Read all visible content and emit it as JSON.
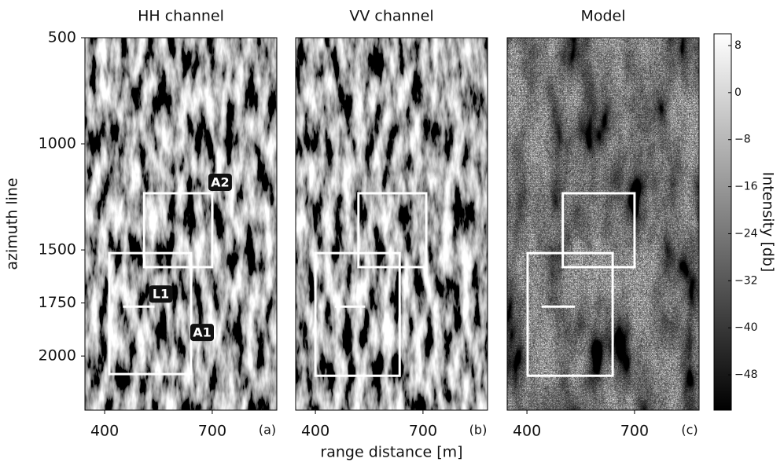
{
  "chart_data": [
    {
      "type": "image",
      "title": "HH channel",
      "panel_label": "(a)",
      "y_label": "azimuth line",
      "xlim": [
        345,
        880
      ],
      "xticks": [
        400,
        700
      ],
      "ylim": [
        500,
        2255
      ],
      "yticks": [
        500,
        1000,
        1500,
        1750,
        2000
      ],
      "y_inverted": true,
      "boxes": [
        {
          "name": "A1",
          "x": [
            413,
            641
          ],
          "y": [
            1515,
            2085
          ]
        },
        {
          "name": "A2",
          "x": [
            510,
            700
          ],
          "y": [
            1233,
            1581
          ]
        }
      ],
      "lines": [
        {
          "name": "L1",
          "x": [
            451,
            539
          ],
          "y": 1767
        }
      ]
    },
    {
      "type": "image",
      "title": "VV channel",
      "panel_label": "(b)",
      "x_label": "range distance [m]",
      "xlim": [
        345,
        880
      ],
      "xticks": [
        400,
        700
      ],
      "ylim": [
        500,
        2255
      ],
      "y_inverted": true,
      "boxes": [
        {
          "x": [
            400,
            635
          ],
          "y": [
            1515,
            2093
          ]
        },
        {
          "x": [
            520,
            709
          ],
          "y": [
            1233,
            1581
          ]
        }
      ],
      "lines": [
        {
          "x": [
            454,
            539
          ],
          "y": 1767
        }
      ]
    },
    {
      "type": "image",
      "title": "Model",
      "panel_label": "(c)",
      "xlim": [
        345,
        880
      ],
      "xticks": [
        400,
        700
      ],
      "ylim": [
        500,
        2255
      ],
      "y_inverted": true,
      "boxes": [
        {
          "x": [
            402,
            639
          ],
          "y": [
            1515,
            2093
          ]
        },
        {
          "x": [
            500,
            700
          ],
          "y": [
            1233,
            1581
          ]
        }
      ],
      "lines": [
        {
          "x": [
            441,
            534
          ],
          "y": 1767
        }
      ]
    },
    {
      "type": "colorbar",
      "y_label": "Intensity [db]",
      "ylim": [
        -54,
        10
      ],
      "yticks": [
        8,
        0,
        {
          "value": -8,
          "label": "−8"
        },
        {
          "value": -16,
          "label": "−16"
        },
        {
          "value": -24,
          "label": "−24"
        },
        {
          "value": -32,
          "label": "−32"
        },
        {
          "value": -40,
          "label": "−40"
        },
        {
          "value": -48,
          "label": "−48"
        }
      ]
    }
  ]
}
